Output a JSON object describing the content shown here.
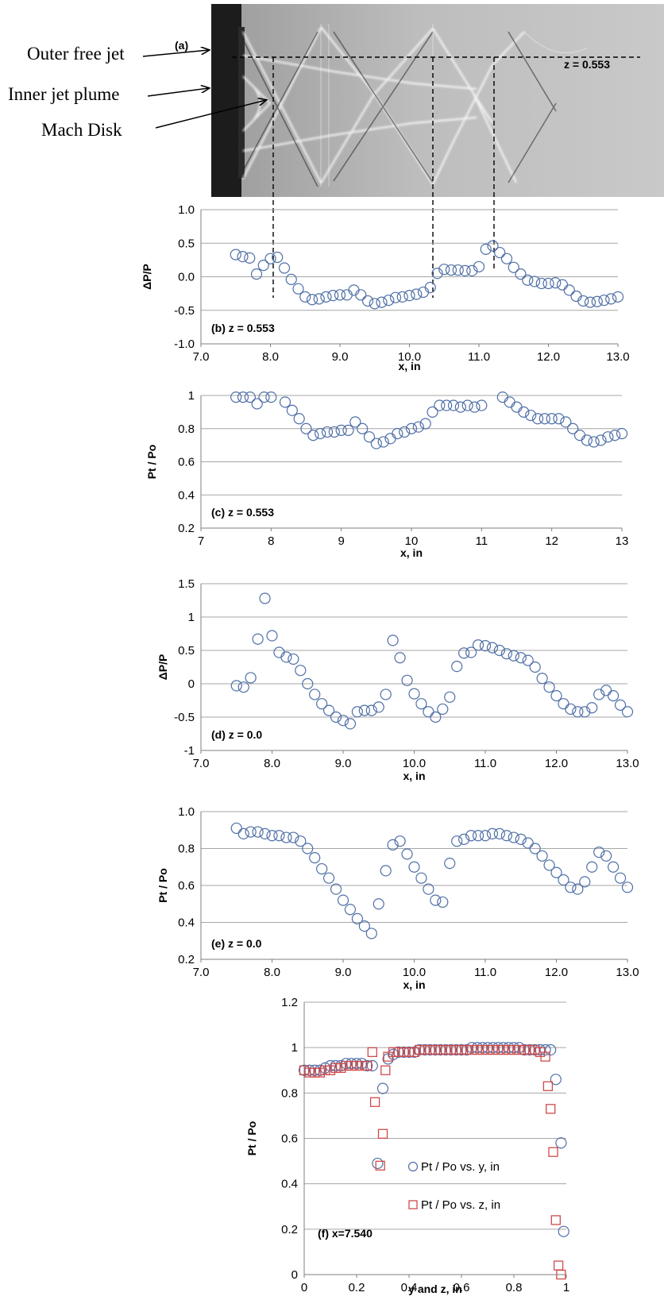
{
  "annotations": {
    "photo_label": "(a)",
    "z_label": "z = 0.553",
    "outer_free_jet": "Outer free jet",
    "inner_jet_plume": "Inner jet plume",
    "mach_disk": "Mach Disk"
  },
  "colors": {
    "marker_blue": "#4f6fa6",
    "marker_red": "#d04a4a",
    "gridline": "#a6a6a6"
  },
  "chart_data": [
    {
      "id": "b",
      "type": "scatter",
      "panel_label": "(b)  z = 0.553",
      "xlabel": "x, in",
      "ylabel": "ΔP/P",
      "xlim": [
        7.0,
        13.0
      ],
      "ylim": [
        -1.0,
        1.0
      ],
      "xticks": [
        "7.0",
        "8.0",
        "9.0",
        "10.0",
        "11.0",
        "12.0",
        "13.0"
      ],
      "yticks": [
        "-1.0",
        "-0.5",
        "0.0",
        "0.5",
        "1.0"
      ],
      "grid": "horizontal",
      "series": [
        {
          "marker": "circle",
          "x": [
            7.5,
            7.6,
            7.7,
            7.8,
            7.9,
            8.0,
            8.1,
            8.2,
            8.3,
            8.4,
            8.5,
            8.6,
            8.7,
            8.8,
            8.9,
            9.0,
            9.1,
            9.2,
            9.3,
            9.4,
            9.5,
            9.6,
            9.7,
            9.8,
            9.9,
            10.0,
            10.1,
            10.2,
            10.3,
            10.4,
            10.5,
            10.6,
            10.7,
            10.8,
            10.9,
            11.0,
            11.1,
            11.2,
            11.3,
            11.4,
            11.5,
            11.6,
            11.7,
            11.8,
            11.9,
            12.0,
            12.1,
            12.2,
            12.3,
            12.4,
            12.5,
            12.6,
            12.7,
            12.8,
            12.9,
            13.0
          ],
          "y": [
            0.33,
            0.3,
            0.28,
            0.04,
            0.17,
            0.27,
            0.29,
            0.13,
            -0.04,
            -0.18,
            -0.3,
            -0.34,
            -0.33,
            -0.3,
            -0.28,
            -0.27,
            -0.27,
            -0.2,
            -0.27,
            -0.36,
            -0.4,
            -0.38,
            -0.35,
            -0.31,
            -0.3,
            -0.28,
            -0.26,
            -0.23,
            -0.16,
            0.05,
            0.11,
            0.1,
            0.1,
            0.09,
            0.09,
            0.15,
            0.41,
            0.46,
            0.36,
            0.27,
            0.14,
            0.04,
            -0.05,
            -0.07,
            -0.1,
            -0.1,
            -0.09,
            -0.12,
            -0.2,
            -0.29,
            -0.36,
            -0.38,
            -0.37,
            -0.35,
            -0.33,
            -0.3
          ]
        }
      ]
    },
    {
      "id": "c",
      "type": "scatter",
      "panel_label": "(c)  z = 0.553",
      "xlabel": "x, in",
      "ylabel": "Pt / Po",
      "xlim": [
        7,
        13
      ],
      "ylim": [
        0.2,
        1.0
      ],
      "xticks": [
        "7",
        "8",
        "9",
        "10",
        "11",
        "12",
        "13"
      ],
      "yticks": [
        "0.2",
        "0.4",
        "0.6",
        "0.8",
        "1"
      ],
      "grid": "horizontal",
      "series": [
        {
          "marker": "circle",
          "x": [
            7.5,
            7.6,
            7.7,
            7.8,
            7.9,
            8.0,
            8.2,
            8.3,
            8.4,
            8.5,
            8.6,
            8.7,
            8.8,
            8.9,
            9.0,
            9.1,
            9.2,
            9.3,
            9.4,
            9.5,
            9.6,
            9.7,
            9.8,
            9.9,
            10.0,
            10.1,
            10.2,
            10.3,
            10.4,
            10.5,
            10.6,
            10.7,
            10.8,
            10.9,
            11.0,
            11.3,
            11.4,
            11.5,
            11.6,
            11.7,
            11.8,
            11.9,
            12.0,
            12.1,
            12.2,
            12.3,
            12.4,
            12.5,
            12.6,
            12.7,
            12.8,
            12.9,
            13.0
          ],
          "y": [
            0.99,
            0.99,
            0.99,
            0.95,
            0.99,
            0.99,
            0.96,
            0.91,
            0.86,
            0.8,
            0.76,
            0.77,
            0.78,
            0.78,
            0.79,
            0.79,
            0.84,
            0.8,
            0.75,
            0.71,
            0.72,
            0.74,
            0.77,
            0.78,
            0.8,
            0.81,
            0.83,
            0.9,
            0.94,
            0.94,
            0.94,
            0.93,
            0.94,
            0.93,
            0.94,
            0.99,
            0.96,
            0.93,
            0.9,
            0.88,
            0.86,
            0.86,
            0.86,
            0.86,
            0.84,
            0.8,
            0.76,
            0.73,
            0.72,
            0.73,
            0.75,
            0.76,
            0.77
          ]
        }
      ]
    },
    {
      "id": "d",
      "type": "scatter",
      "panel_label": "(d)  z = 0.0",
      "xlabel": "x, in",
      "ylabel": "ΔP/P",
      "xlim": [
        7.0,
        13.0
      ],
      "ylim": [
        -1.0,
        1.5
      ],
      "xticks": [
        "7.0",
        "8.0",
        "9.0",
        "10.0",
        "11.0",
        "12.0",
        "13.0"
      ],
      "yticks": [
        "-1",
        "-0.5",
        "0",
        "0.5",
        "1",
        "1.5"
      ],
      "grid": "horizontal",
      "series": [
        {
          "marker": "circle",
          "x": [
            7.5,
            7.6,
            7.7,
            7.8,
            7.9,
            8.0,
            8.1,
            8.2,
            8.3,
            8.4,
            8.5,
            8.6,
            8.7,
            8.8,
            8.9,
            9.0,
            9.1,
            9.2,
            9.3,
            9.4,
            9.5,
            9.6,
            9.7,
            9.8,
            9.9,
            10.0,
            10.1,
            10.2,
            10.3,
            10.4,
            10.5,
            10.6,
            10.7,
            10.8,
            10.9,
            11.0,
            11.1,
            11.2,
            11.3,
            11.4,
            11.5,
            11.6,
            11.7,
            11.8,
            11.9,
            12.0,
            12.1,
            12.2,
            12.3,
            12.4,
            12.5,
            12.6,
            12.7,
            12.8,
            12.9,
            13.0
          ],
          "y": [
            -0.03,
            -0.05,
            0.09,
            0.67,
            1.28,
            0.72,
            0.47,
            0.4,
            0.37,
            0.2,
            0.0,
            -0.16,
            -0.3,
            -0.4,
            -0.5,
            -0.55,
            -0.6,
            -0.42,
            -0.4,
            -0.4,
            -0.35,
            -0.16,
            0.65,
            0.39,
            0.05,
            -0.15,
            -0.3,
            -0.42,
            -0.5,
            -0.38,
            -0.2,
            0.26,
            0.46,
            0.47,
            0.58,
            0.57,
            0.54,
            0.5,
            0.45,
            0.42,
            0.39,
            0.35,
            0.25,
            0.08,
            -0.05,
            -0.18,
            -0.3,
            -0.38,
            -0.42,
            -0.42,
            -0.36,
            -0.16,
            -0.1,
            -0.18,
            -0.32,
            -0.42
          ]
        }
      ]
    },
    {
      "id": "e",
      "type": "scatter",
      "panel_label": "(e)  z = 0.0",
      "xlabel": "x, in",
      "ylabel": "Pt / Po",
      "xlim": [
        7.0,
        13.0
      ],
      "ylim": [
        0.2,
        1.0
      ],
      "xticks": [
        "7.0",
        "8.0",
        "9.0",
        "10.0",
        "11.0",
        "12.0",
        "13.0"
      ],
      "yticks": [
        "0.2",
        "0.4",
        "0.6",
        "0.8",
        "1.0"
      ],
      "grid": "horizontal",
      "series": [
        {
          "marker": "circle",
          "x": [
            7.5,
            7.6,
            7.7,
            7.8,
            7.9,
            8.0,
            8.1,
            8.2,
            8.3,
            8.4,
            8.5,
            8.6,
            8.7,
            8.8,
            8.9,
            9.0,
            9.1,
            9.2,
            9.3,
            9.4,
            9.5,
            9.6,
            9.7,
            9.8,
            9.9,
            10.0,
            10.1,
            10.2,
            10.3,
            10.4,
            10.5,
            10.6,
            10.7,
            10.8,
            10.9,
            11.0,
            11.1,
            11.2,
            11.3,
            11.4,
            11.5,
            11.6,
            11.7,
            11.8,
            11.9,
            12.0,
            12.1,
            12.2,
            12.3,
            12.4,
            12.5,
            12.6,
            12.7,
            12.8,
            12.9,
            13.0
          ],
          "y": [
            0.91,
            0.88,
            0.89,
            0.89,
            0.88,
            0.87,
            0.87,
            0.86,
            0.86,
            0.84,
            0.8,
            0.75,
            0.69,
            0.64,
            0.58,
            0.52,
            0.47,
            0.42,
            0.38,
            0.34,
            0.5,
            0.68,
            0.82,
            0.84,
            0.77,
            0.7,
            0.64,
            0.58,
            0.52,
            0.51,
            0.72,
            0.84,
            0.85,
            0.87,
            0.87,
            0.87,
            0.88,
            0.88,
            0.87,
            0.86,
            0.85,
            0.83,
            0.8,
            0.76,
            0.71,
            0.67,
            0.63,
            0.59,
            0.58,
            0.62,
            0.7,
            0.78,
            0.76,
            0.7,
            0.64,
            0.59
          ]
        }
      ]
    },
    {
      "id": "f",
      "type": "scatter",
      "panel_label": "(f) x=7.540",
      "xlabel": "y and z, in",
      "ylabel": "Pt / Po",
      "xlim": [
        0,
        1.0
      ],
      "ylim": [
        0,
        1.2
      ],
      "xticks": [
        "0",
        "0.2",
        "0.4",
        "0.6",
        "0.8",
        "1"
      ],
      "yticks": [
        "0",
        "0.2",
        "0.4",
        "0.6",
        "0.8",
        "1",
        "1.2"
      ],
      "grid": "horizontal",
      "legend_position": "lower-center",
      "series": [
        {
          "name": "Pt / Po vs. y, in",
          "marker": "circle",
          "x": [
            0.0,
            0.02,
            0.04,
            0.06,
            0.08,
            0.1,
            0.12,
            0.14,
            0.16,
            0.18,
            0.2,
            0.22,
            0.24,
            0.26,
            0.28,
            0.3,
            0.32,
            0.34,
            0.36,
            0.38,
            0.4,
            0.42,
            0.44,
            0.46,
            0.48,
            0.5,
            0.52,
            0.54,
            0.56,
            0.58,
            0.6,
            0.62,
            0.64,
            0.66,
            0.68,
            0.7,
            0.72,
            0.74,
            0.76,
            0.78,
            0.8,
            0.82,
            0.84,
            0.86,
            0.88,
            0.9,
            0.92,
            0.94,
            0.96,
            0.98,
            0.99
          ],
          "y": [
            0.9,
            0.9,
            0.9,
            0.9,
            0.91,
            0.92,
            0.92,
            0.92,
            0.93,
            0.93,
            0.93,
            0.93,
            0.92,
            0.92,
            0.49,
            0.82,
            0.95,
            0.97,
            0.98,
            0.98,
            0.98,
            0.98,
            0.99,
            0.99,
            0.99,
            0.99,
            0.99,
            0.99,
            0.99,
            0.99,
            0.99,
            0.99,
            1.0,
            1.0,
            1.0,
            1.0,
            1.0,
            1.0,
            1.0,
            1.0,
            1.0,
            1.0,
            0.99,
            0.99,
            0.99,
            0.99,
            0.99,
            0.99,
            0.86,
            0.58,
            0.19
          ]
        },
        {
          "name": "Pt / Po vs. z, in",
          "marker": "square",
          "x": [
            0.0,
            0.02,
            0.04,
            0.06,
            0.08,
            0.1,
            0.12,
            0.14,
            0.16,
            0.18,
            0.2,
            0.22,
            0.24,
            0.26,
            0.27,
            0.29,
            0.3,
            0.31,
            0.32,
            0.34,
            0.36,
            0.38,
            0.4,
            0.42,
            0.44,
            0.46,
            0.48,
            0.5,
            0.52,
            0.54,
            0.56,
            0.58,
            0.6,
            0.62,
            0.64,
            0.66,
            0.68,
            0.7,
            0.72,
            0.74,
            0.76,
            0.78,
            0.8,
            0.82,
            0.84,
            0.86,
            0.88,
            0.9,
            0.92,
            0.93,
            0.94,
            0.95,
            0.96,
            0.97,
            0.98
          ],
          "y": [
            0.9,
            0.89,
            0.89,
            0.89,
            0.9,
            0.9,
            0.91,
            0.91,
            0.92,
            0.92,
            0.92,
            0.92,
            0.92,
            0.98,
            0.76,
            0.48,
            0.62,
            0.9,
            0.96,
            0.98,
            0.98,
            0.98,
            0.98,
            0.98,
            0.99,
            0.99,
            0.99,
            0.99,
            0.99,
            0.99,
            0.99,
            0.99,
            0.99,
            0.99,
            0.99,
            0.99,
            0.99,
            0.99,
            0.99,
            0.99,
            0.99,
            0.99,
            0.99,
            0.99,
            0.99,
            0.99,
            0.99,
            0.98,
            0.96,
            0.83,
            0.73,
            0.54,
            0.24,
            0.04,
            0.0
          ]
        }
      ]
    }
  ]
}
